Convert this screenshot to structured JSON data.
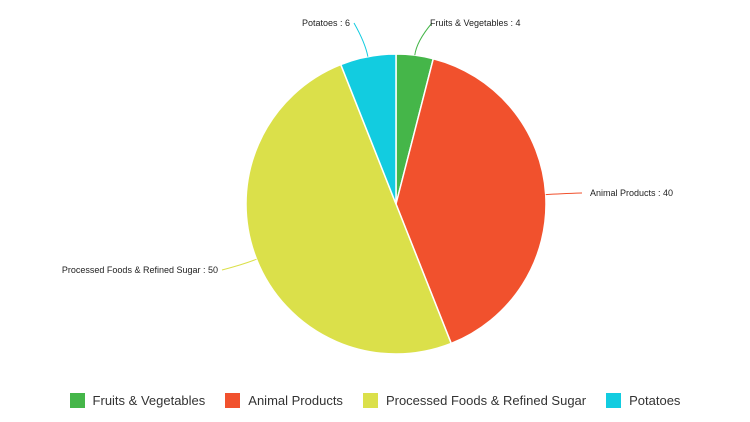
{
  "chart_data": {
    "type": "pie",
    "title": "",
    "slices": [
      {
        "label": "Fruits & Vegetables",
        "value": 4,
        "color": "#45b649"
      },
      {
        "label": "Animal Products",
        "value": 40,
        "color": "#f1512d"
      },
      {
        "label": "Processed Foods & Refined Sugar",
        "value": 50,
        "color": "#dbe04a"
      },
      {
        "label": "Potatoes",
        "value": 6,
        "color": "#12cce0"
      }
    ],
    "start_angle_deg": 0,
    "direction": "clockwise",
    "legend_position": "bottom",
    "label_format": "{label} : {value}"
  }
}
